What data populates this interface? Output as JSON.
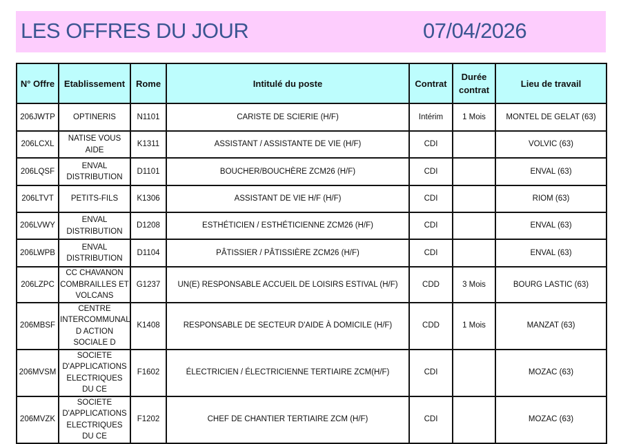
{
  "header": {
    "title": "LES OFFRES DU JOUR",
    "date": "07/04/2026"
  },
  "colors": {
    "banner": "#fdcdfd",
    "table_header": "#bdfdfd",
    "title_text": "#3a5591"
  },
  "table": {
    "columns": [
      "N° Offre",
      "Etablissement",
      "Rome",
      "Intitulé du poste",
      "Contrat",
      "Durée contrat",
      "Lieu de travail"
    ],
    "rows": [
      {
        "offre": "206JWTP",
        "etablissement": "OPTINERIS",
        "rome": "N1101",
        "intitule": "CARISTE DE SCIERIE (H/F)",
        "contrat": "Intérim",
        "duree": "1 Mois",
        "lieu": "MONTEL DE GELAT (63)"
      },
      {
        "offre": "206LCXL",
        "etablissement": "NATISE VOUS AIDE",
        "rome": "K1311",
        "intitule": "ASSISTANT / ASSISTANTE DE VIE (H/F)",
        "contrat": "CDI",
        "duree": "",
        "lieu": "VOLVIC (63)"
      },
      {
        "offre": "206LQSF",
        "etablissement": "ENVAL DISTRIBUTION",
        "rome": "D1101",
        "intitule": "BOUCHER/BOUCHÈRE ZCM26 (H/F)",
        "contrat": "CDI",
        "duree": "",
        "lieu": "ENVAL (63)"
      },
      {
        "offre": "206LTVT",
        "etablissement": "PETITS-FILS",
        "rome": "K1306",
        "intitule": "ASSISTANT DE VIE H/F (H/F)",
        "contrat": "CDI",
        "duree": "",
        "lieu": "RIOM (63)"
      },
      {
        "offre": "206LVWY",
        "etablissement": "ENVAL DISTRIBUTION",
        "rome": "D1208",
        "intitule": "ESTHÉTICIEN / ESTHÉTICIENNE  ZCM26 (H/F)",
        "contrat": "CDI",
        "duree": "",
        "lieu": "ENVAL (63)"
      },
      {
        "offre": "206LWPB",
        "etablissement": "ENVAL DISTRIBUTION",
        "rome": "D1104",
        "intitule": "PÂTISSIER / PÂTISSIÈRE ZCM26 (H/F)",
        "contrat": "CDI",
        "duree": "",
        "lieu": "ENVAL (63)"
      },
      {
        "offre": "206LZPC",
        "etablissement": "CC CHAVANON COMBRAILLES ET VOLCANS",
        "rome": "G1237",
        "intitule": "UN(E) RESPONSABLE ACCUEIL DE LOISIRS ESTIVAL (H/F)",
        "contrat": "CDD",
        "duree": "3 Mois",
        "lieu": "BOURG LASTIC (63)"
      },
      {
        "offre": "206MBSF",
        "etablissement": "CENTRE INTERCOMMUNAL D ACTION SOCIALE D",
        "rome": "K1408",
        "intitule": "RESPONSABLE DE SECTEUR D'AIDE À DOMICILE (H/F)",
        "contrat": "CDD",
        "duree": "1 Mois",
        "lieu": "MANZAT (63)"
      },
      {
        "offre": "206MVSM",
        "etablissement": "SOCIETE D'APPLICATIONS ELECTRIQUES DU CE",
        "rome": "F1602",
        "intitule": "ÉLECTRICIEN / ÉLECTRICIENNE TERTIAIRE  ZCM(H/F)",
        "contrat": "CDI",
        "duree": "",
        "lieu": "MOZAC (63)"
      },
      {
        "offre": "206MVZK",
        "etablissement": "SOCIETE D'APPLICATIONS ELECTRIQUES DU CE",
        "rome": "F1202",
        "intitule": "CHEF DE CHANTIER TERTIAIRE  ZCM (H/F)",
        "contrat": "CDI",
        "duree": "",
        "lieu": "MOZAC (63)"
      }
    ]
  }
}
